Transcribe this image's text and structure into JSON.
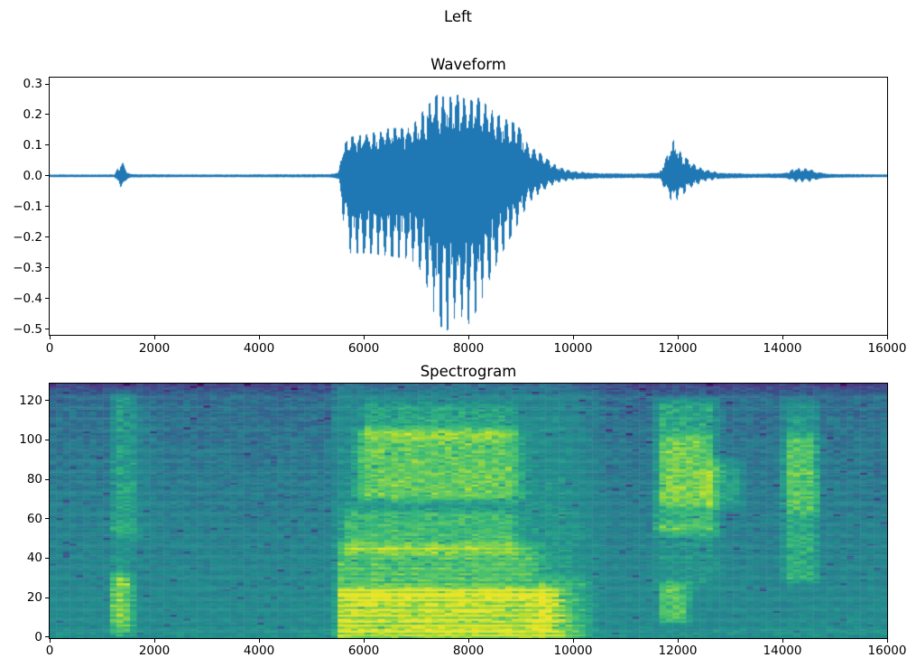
{
  "figure": {
    "suptitle": "Left",
    "background": "#ffffff",
    "text_color": "#000000"
  },
  "chart_data": [
    {
      "type": "line",
      "name": "waveform",
      "title": "Waveform",
      "line_color": "#1f77b4",
      "xlabel": "",
      "ylabel": "",
      "xlim": [
        0,
        16000
      ],
      "ylim": [
        -0.518,
        0.3206
      ],
      "x_tick_values": [
        0,
        2000,
        4000,
        6000,
        8000,
        10000,
        12000,
        14000,
        16000
      ],
      "x_tick_labels": [
        "0",
        "2000",
        "4000",
        "6000",
        "8000",
        "10000",
        "12000",
        "14000",
        "16000"
      ],
      "y_tick_values": [
        0.3,
        0.2,
        0.1,
        0.0,
        -0.1,
        -0.2,
        -0.3,
        -0.4,
        -0.5
      ],
      "y_tick_labels": [
        "0.3",
        "0.2",
        "0.1",
        "0.0",
        "−0.1",
        "−0.2",
        "−0.3",
        "−0.4",
        "−0.5"
      ],
      "pitch_period_samples": 133,
      "envelope_keypoints": [
        [
          0,
          0.005,
          0.004
        ],
        [
          1240,
          0.005,
          0.004
        ],
        [
          1310,
          0.03,
          0.025
        ],
        [
          1400,
          0.045,
          0.05
        ],
        [
          1480,
          0.012,
          0.01
        ],
        [
          1560,
          0.006,
          0.005
        ],
        [
          2600,
          0.005,
          0.004
        ],
        [
          5350,
          0.006,
          0.005
        ],
        [
          5520,
          0.012,
          0.01
        ],
        [
          5600,
          0.1,
          0.14
        ],
        [
          5750,
          0.13,
          0.26
        ],
        [
          6100,
          0.14,
          0.26
        ],
        [
          6500,
          0.16,
          0.27
        ],
        [
          6900,
          0.16,
          0.28
        ],
        [
          7150,
          0.22,
          0.33
        ],
        [
          7400,
          0.27,
          0.5
        ],
        [
          7600,
          0.26,
          0.52
        ],
        [
          7800,
          0.27,
          0.46
        ],
        [
          8000,
          0.25,
          0.5
        ],
        [
          8200,
          0.26,
          0.44
        ],
        [
          8450,
          0.22,
          0.33
        ],
        [
          8700,
          0.19,
          0.24
        ],
        [
          8950,
          0.17,
          0.16
        ],
        [
          9150,
          0.1,
          0.09
        ],
        [
          9350,
          0.08,
          0.06
        ],
        [
          9550,
          0.05,
          0.035
        ],
        [
          9750,
          0.028,
          0.02
        ],
        [
          10050,
          0.015,
          0.012
        ],
        [
          10500,
          0.009,
          0.008
        ],
        [
          11300,
          0.008,
          0.007
        ],
        [
          11650,
          0.012,
          0.01
        ],
        [
          11800,
          0.07,
          0.06
        ],
        [
          11920,
          0.12,
          0.095
        ],
        [
          12050,
          0.08,
          0.07
        ],
        [
          12250,
          0.045,
          0.04
        ],
        [
          12500,
          0.022,
          0.018
        ],
        [
          12850,
          0.01,
          0.009
        ],
        [
          13600,
          0.007,
          0.006
        ],
        [
          14050,
          0.01,
          0.008
        ],
        [
          14250,
          0.026,
          0.02
        ],
        [
          14500,
          0.024,
          0.02
        ],
        [
          14700,
          0.012,
          0.01
        ],
        [
          14900,
          0.007,
          0.006
        ],
        [
          16000,
          0.005,
          0.004
        ]
      ]
    },
    {
      "type": "heatmap",
      "name": "spectrogram",
      "title": "Spectrogram",
      "colormap": "viridis",
      "xlim": [
        0,
        16000
      ],
      "freq_bins": 129,
      "time_bins": 125,
      "x_tick_values": [
        0,
        2000,
        4000,
        6000,
        8000,
        10000,
        12000,
        14000,
        16000
      ],
      "x_tick_labels": [
        "0",
        "2000",
        "4000",
        "6000",
        "8000",
        "10000",
        "12000",
        "14000",
        "16000"
      ],
      "y_tick_values": [
        0,
        20,
        40,
        60,
        80,
        100,
        120
      ],
      "y_tick_labels": [
        "0",
        "20",
        "40",
        "60",
        "80",
        "100",
        "120"
      ],
      "background": {
        "base": 0.46,
        "top_fade": 0.16,
        "bottom_boost": 0.05,
        "top_dark_start": 122,
        "top_dark_step": 0.022,
        "noise": 0.13,
        "speck_prob": 0.02,
        "speck_drop": 0.17
      },
      "events": [
        {
          "t": [
            1260,
            1430
          ],
          "f": [
            4,
            30
          ],
          "boost": 0.28,
          "striate": true
        },
        {
          "t": [
            1260,
            1430
          ],
          "f": [
            10,
            26
          ],
          "boost": 0.14
        },
        {
          "t": [
            1260,
            1430
          ],
          "f": [
            30,
            55
          ],
          "boost": 0.1
        },
        {
          "t": [
            1260,
            1430
          ],
          "f": [
            55,
            122
          ],
          "boost": 0.2
        },
        {
          "t": [
            1600,
            1780
          ],
          "f": [
            50,
            118
          ],
          "boost": 0.07
        },
        {
          "t": [
            5500,
            9900
          ],
          "f": [
            1,
            128
          ],
          "boost": 0.12,
          "taper": [
            150,
            800
          ],
          "ftaper": 8
        },
        {
          "t": [
            5550,
            9500
          ],
          "f": [
            2,
            22
          ],
          "boost": 0.4,
          "taper": [
            120,
            500
          ],
          "striate": true
        },
        {
          "t": [
            5550,
            9100
          ],
          "f": [
            22,
            45
          ],
          "boost": 0.2,
          "taper": [
            120,
            500
          ],
          "striate": true
        },
        {
          "t": [
            5700,
            8800
          ],
          "f": [
            45,
            62
          ],
          "boost": 0.16
        },
        {
          "t": [
            6050,
            8750
          ],
          "f": [
            72,
            103
          ],
          "boost": 0.27,
          "taper": [
            350,
            450
          ]
        },
        {
          "t": [
            6050,
            8750
          ],
          "f": [
            103,
            116
          ],
          "boost": 0.13
        },
        {
          "t": [
            9400,
            10150
          ],
          "f": [
            1,
            28
          ],
          "boost": 0.13,
          "striate": true
        },
        {
          "t": [
            11650,
            12650
          ],
          "f": [
            55,
            118
          ],
          "boost": 0.26,
          "taper": [
            150,
            250
          ]
        },
        {
          "t": [
            11750,
            12400
          ],
          "f": [
            70,
            100
          ],
          "boost": 0.17
        },
        {
          "t": [
            12550,
            13100
          ],
          "f": [
            68,
            88
          ],
          "boost": 0.18,
          "taper": [
            100,
            250
          ]
        },
        {
          "t": [
            11720,
            12080
          ],
          "f": [
            10,
            25
          ],
          "boost": 0.27
        },
        {
          "t": [
            11650,
            12650
          ],
          "f": [
            28,
            55
          ],
          "boost": 0.09
        },
        {
          "t": [
            14080,
            14580
          ],
          "f": [
            30,
            118
          ],
          "boost": 0.2,
          "taper": [
            120,
            200
          ]
        },
        {
          "t": [
            14120,
            14560
          ],
          "f": [
            66,
            100
          ],
          "boost": 0.16
        }
      ]
    }
  ]
}
